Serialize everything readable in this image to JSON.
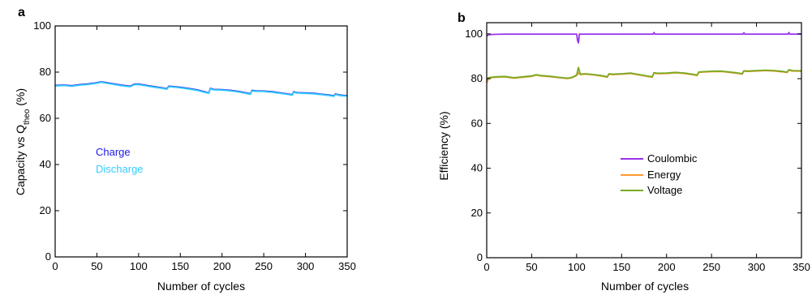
{
  "chart_data": [
    {
      "panel": "a",
      "type": "line",
      "title": "",
      "xlabel": "Number of cycles",
      "ylabel": "Capacity vs Q_theo (%)",
      "ylabel_parts": [
        "Capacity vs Q",
        "theo",
        " (%)"
      ],
      "xlim": [
        0,
        350
      ],
      "ylim": [
        0,
        100
      ],
      "xticks": [
        0,
        50,
        100,
        150,
        200,
        250,
        300,
        350
      ],
      "yticks": [
        0,
        20,
        40,
        60,
        80,
        100
      ],
      "grid": false,
      "legend": "text labels at mid-left",
      "series": [
        {
          "name": "Charge",
          "color": "#1a1ae6",
          "x": [
            0,
            10,
            20,
            30,
            40,
            50,
            55,
            60,
            70,
            80,
            90,
            95,
            100,
            110,
            120,
            130,
            134,
            136,
            140,
            150,
            160,
            170,
            180,
            184,
            186,
            190,
            200,
            210,
            220,
            230,
            234,
            236,
            240,
            250,
            260,
            270,
            280,
            284,
            286,
            290,
            300,
            310,
            320,
            330,
            334,
            336,
            340,
            350
          ],
          "values": [
            74.2,
            74.4,
            74.1,
            74.6,
            74.9,
            75.4,
            75.8,
            75.5,
            74.9,
            74.3,
            73.9,
            74.8,
            74.8,
            74.2,
            73.6,
            73.1,
            72.8,
            73.9,
            73.8,
            73.4,
            72.9,
            72.3,
            71.4,
            71.0,
            73.0,
            72.5,
            72.4,
            72.1,
            71.6,
            70.9,
            70.6,
            72.1,
            71.9,
            71.8,
            71.5,
            71.0,
            70.5,
            70.2,
            71.5,
            71.1,
            71.0,
            70.8,
            70.4,
            70.0,
            69.7,
            70.6,
            70.1,
            69.8
          ]
        },
        {
          "name": "Discharge",
          "color": "#33ccff",
          "x": [
            0,
            10,
            20,
            30,
            40,
            50,
            55,
            60,
            70,
            80,
            90,
            95,
            100,
            110,
            120,
            130,
            134,
            136,
            140,
            150,
            160,
            170,
            180,
            184,
            186,
            190,
            200,
            210,
            220,
            230,
            234,
            236,
            240,
            250,
            260,
            270,
            280,
            284,
            286,
            290,
            300,
            310,
            320,
            330,
            334,
            336,
            340,
            350
          ],
          "values": [
            74.0,
            74.2,
            73.9,
            74.4,
            74.7,
            75.2,
            75.6,
            75.3,
            74.7,
            74.1,
            73.7,
            74.6,
            74.6,
            74.0,
            73.4,
            72.9,
            72.6,
            73.7,
            73.6,
            73.2,
            72.7,
            72.1,
            71.2,
            70.8,
            72.8,
            72.3,
            72.2,
            71.9,
            71.4,
            70.7,
            70.4,
            71.9,
            71.7,
            71.6,
            71.3,
            70.8,
            70.3,
            70.0,
            71.3,
            70.9,
            70.8,
            70.6,
            70.2,
            69.8,
            69.5,
            70.4,
            69.9,
            69.6
          ]
        }
      ]
    },
    {
      "panel": "b",
      "type": "line",
      "title": "",
      "xlabel": "Number of cycles",
      "ylabel": "Efficiency (%)",
      "xlim": [
        0,
        350
      ],
      "ylim": [
        0,
        105
      ],
      "xticks": [
        0,
        50,
        100,
        150,
        200,
        250,
        300,
        350
      ],
      "yticks": [
        0,
        20,
        40,
        60,
        80,
        100
      ],
      "grid": false,
      "legend": "center-right",
      "series": [
        {
          "name": "Coulombic",
          "color": "#9933ee",
          "x": [
            0,
            2,
            5,
            10,
            20,
            50,
            100,
            101,
            102,
            103,
            104,
            135,
            185,
            186,
            187,
            235,
            285,
            286,
            287,
            335,
            336,
            337,
            350
          ],
          "values": [
            99.0,
            99.6,
            99.7,
            99.8,
            99.9,
            99.9,
            99.9,
            97.0,
            96.0,
            99.9,
            99.9,
            99.9,
            99.9,
            100.6,
            99.9,
            99.9,
            99.9,
            100.5,
            99.9,
            99.9,
            100.6,
            99.9,
            99.9
          ]
        },
        {
          "name": "Energy",
          "color": "#ff9933",
          "x": [
            0,
            2,
            5,
            10,
            20,
            30,
            40,
            50,
            55,
            60,
            70,
            80,
            90,
            95,
            100,
            102,
            104,
            110,
            120,
            130,
            134,
            136,
            140,
            150,
            160,
            170,
            180,
            184,
            186,
            190,
            200,
            210,
            220,
            230,
            234,
            236,
            240,
            250,
            260,
            270,
            280,
            284,
            286,
            290,
            300,
            310,
            320,
            330,
            334,
            336,
            340,
            350
          ],
          "values": [
            78.0,
            80.0,
            80.4,
            80.6,
            80.8,
            80.2,
            80.6,
            81.0,
            81.6,
            81.2,
            80.9,
            80.4,
            80.0,
            80.4,
            81.4,
            82.6,
            81.8,
            82.0,
            81.6,
            81.0,
            80.6,
            82.0,
            81.8,
            82.0,
            82.3,
            81.6,
            80.9,
            80.6,
            82.5,
            82.2,
            82.3,
            82.6,
            82.3,
            81.7,
            81.4,
            82.8,
            82.9,
            83.1,
            83.2,
            82.8,
            82.3,
            82.0,
            83.3,
            83.2,
            83.4,
            83.6,
            83.4,
            83.0,
            82.7,
            83.8,
            83.4,
            83.3
          ]
        },
        {
          "name": "Voltage",
          "color": "#77aa22",
          "x": [
            0,
            2,
            5,
            10,
            20,
            30,
            40,
            50,
            55,
            60,
            70,
            80,
            90,
            95,
            100,
            102,
            104,
            110,
            120,
            130,
            134,
            136,
            140,
            150,
            160,
            170,
            180,
            184,
            186,
            190,
            200,
            210,
            220,
            230,
            234,
            236,
            240,
            250,
            260,
            270,
            280,
            284,
            286,
            290,
            300,
            310,
            320,
            330,
            334,
            336,
            340,
            350
          ],
          "values": [
            79.5,
            80.4,
            80.6,
            80.8,
            81.0,
            80.4,
            80.8,
            81.2,
            81.8,
            81.4,
            81.1,
            80.6,
            80.2,
            80.6,
            81.6,
            85.0,
            82.0,
            82.2,
            81.8,
            81.2,
            80.8,
            82.2,
            82.0,
            82.2,
            82.5,
            81.8,
            81.1,
            80.8,
            82.7,
            82.4,
            82.5,
            82.8,
            82.5,
            81.9,
            81.6,
            83.0,
            83.1,
            83.3,
            83.4,
            83.0,
            82.5,
            82.2,
            83.5,
            83.4,
            83.6,
            83.8,
            83.6,
            83.2,
            82.9,
            84.0,
            83.6,
            83.5
          ]
        }
      ]
    }
  ]
}
